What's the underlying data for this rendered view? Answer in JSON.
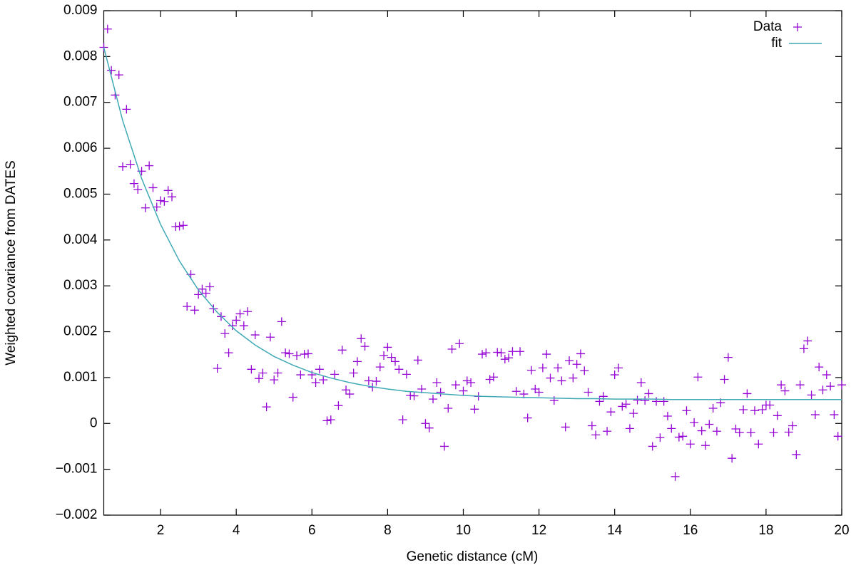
{
  "chart_data": {
    "type": "scatter",
    "xlabel": "Genetic distance (cM)",
    "ylabel": "Weighted covariance from DATES",
    "xlim": [
      0.5,
      20
    ],
    "ylim": [
      -0.002,
      0.009
    ],
    "xticks": [
      2,
      4,
      6,
      8,
      10,
      12,
      14,
      16,
      18,
      20
    ],
    "yticks": [
      {
        "value": -0.002,
        "label": "−0.002"
      },
      {
        "value": -0.001,
        "label": "−0.001"
      },
      0,
      0.001,
      0.002,
      0.003,
      0.004,
      0.005,
      0.006,
      0.007,
      0.008,
      0.009
    ],
    "grid": false,
    "legend": "upper right",
    "series": [
      {
        "name": "Data",
        "color": "#9400d3",
        "kind": "points",
        "x": [
          0.5,
          0.6,
          0.7,
          0.8,
          0.9,
          1,
          1.1,
          1.2,
          1.3,
          1.4,
          1.5,
          1.6,
          1.7,
          1.8,
          1.9,
          2,
          2.1,
          2.2,
          2.3,
          2.4,
          2.5,
          2.6,
          2.7,
          2.8,
          2.9,
          3,
          3.1,
          3.2,
          3.3,
          3.4,
          3.5,
          3.6,
          3.7,
          3.8,
          3.9,
          4,
          4.1,
          4.2,
          4.3,
          4.4,
          4.5,
          4.6,
          4.7,
          4.8,
          4.9,
          5,
          5.1,
          5.2,
          5.3,
          5.4,
          5.5,
          5.6,
          5.7,
          5.8,
          5.9,
          6,
          6.1,
          6.2,
          6.3,
          6.4,
          6.5,
          6.6,
          6.7,
          6.8,
          6.9,
          7,
          7.1,
          7.2,
          7.3,
          7.4,
          7.5,
          7.6,
          7.7,
          7.8,
          7.9,
          8,
          8.1,
          8.2,
          8.3,
          8.4,
          8.5,
          8.6,
          8.7,
          8.8,
          8.9,
          9,
          9.1,
          9.2,
          9.3,
          9.4,
          9.5,
          9.6,
          9.7,
          9.8,
          9.9,
          10,
          10.1,
          10.2,
          10.3,
          10.4,
          10.5,
          10.6,
          10.7,
          10.8,
          10.9,
          11,
          11.1,
          11.2,
          11.3,
          11.4,
          11.5,
          11.6,
          11.7,
          11.8,
          11.9,
          12,
          12.1,
          12.2,
          12.3,
          12.4,
          12.5,
          12.6,
          12.7,
          12.8,
          12.9,
          13,
          13.1,
          13.2,
          13.3,
          13.4,
          13.5,
          13.6,
          13.7,
          13.8,
          13.9,
          14,
          14.1,
          14.2,
          14.3,
          14.4,
          14.5,
          14.6,
          14.7,
          14.8,
          14.9,
          15,
          15.1,
          15.2,
          15.3,
          15.4,
          15.5,
          15.6,
          15.7,
          15.8,
          15.9,
          16,
          16.1,
          16.2,
          16.3,
          16.4,
          16.5,
          16.6,
          16.7,
          16.8,
          16.9,
          17,
          17.1,
          17.2,
          17.3,
          17.4,
          17.5,
          17.6,
          17.7,
          17.8,
          17.9,
          18,
          18.1,
          18.2,
          18.3,
          18.4,
          18.5,
          18.6,
          18.7,
          18.8,
          18.9,
          19,
          19.1,
          19.2,
          19.3,
          19.4,
          19.5,
          19.6,
          19.7,
          19.8,
          19.9,
          20
        ],
        "values": [
          0.0082,
          0.0086,
          0.0077,
          0.00716,
          0.0076,
          0.0056,
          0.00685,
          0.00565,
          0.00523,
          0.0051,
          0.0055,
          0.0047,
          0.00562,
          0.00514,
          0.00472,
          0.00486,
          0.00484,
          0.00508,
          0.00494,
          0.00429,
          0.0043,
          0.00432,
          0.00255,
          0.00325,
          0.00247,
          0.00281,
          0.00293,
          0.00284,
          0.00298,
          0.0025,
          0.0012,
          0.00233,
          0.00196,
          0.00154,
          0.00213,
          0.00225,
          0.00239,
          0.00213,
          0.00244,
          0.00118,
          0.00193,
          0.00098,
          0.0011,
          0.00036,
          0.00188,
          0.00095,
          0.0011,
          0.00222,
          0.00154,
          0.00152,
          0.00057,
          0.00148,
          0.00106,
          0.00151,
          0.00152,
          0.00106,
          0.00089,
          0.00118,
          0.00095,
          6e-05,
          8e-05,
          0.00107,
          0.00039,
          0.0016,
          0.00073,
          0.00064,
          0.0011,
          0.00135,
          0.00185,
          0.00168,
          0.00093,
          0.00079,
          0.00092,
          0.00123,
          0.00148,
          0.00166,
          0.00144,
          0.00135,
          0.00118,
          8e-05,
          0.00107,
          0.00061,
          0.0006,
          0.00138,
          0.00075,
          0,
          -0.0001,
          0.00053,
          0.00089,
          0.00068,
          -0.0005,
          0.00033,
          0.00162,
          0.00084,
          0.00174,
          0.00071,
          0.00093,
          0.00089,
          0.00031,
          0.00059,
          0.00151,
          0.00154,
          0.00096,
          0.00101,
          0.00155,
          0.00154,
          0.0014,
          0.00143,
          0.00157,
          0.0007,
          0.00157,
          0.00064,
          0.00012,
          0.00116,
          0.00075,
          0.00068,
          0.00121,
          0.00151,
          0.00099,
          0.0005,
          0.00121,
          0.00093,
          -8e-05,
          0.00137,
          0.00099,
          0.00129,
          0.00152,
          0.00115,
          0.00068,
          -5e-05,
          -0.00025,
          0.00048,
          0.00059,
          -0.00017,
          0.00025,
          0.00106,
          0.00121,
          0.00037,
          0.00042,
          -0.00011,
          0.00022,
          0.00051,
          0.00089,
          0.0005,
          0.00065,
          -0.0005,
          0.00048,
          -0.00031,
          0.00048,
          0.00016,
          -0.00011,
          -0.00116,
          -0.0003,
          -0.00028,
          0.00028,
          -0.00045,
          2e-05,
          0.00101,
          -0.00016,
          -0.00048,
          -2e-05,
          0.00033,
          -0.00017,
          0.00045,
          0.00096,
          0.00144,
          -0.00076,
          -0.00012,
          -0.0002,
          0.0003,
          0.00065,
          -0.0002,
          0.00028,
          -0.00045,
          0.0003,
          0.0004,
          0.0004,
          -0.0002,
          0.00017,
          0.00084,
          0.00071,
          -0.00019,
          -5e-05,
          -0.00068,
          0.00084,
          0.00163,
          0.0018,
          0.00062,
          0.00019,
          0.00123,
          0.00073,
          0.00106,
          0.00081,
          0.00019,
          -0.00028,
          0.00084
        ]
      },
      {
        "name": "fit",
        "color": "#3fa9b5",
        "kind": "line",
        "x": [
          0.5,
          1,
          1.5,
          2,
          2.5,
          3,
          3.5,
          4,
          4.5,
          5,
          5.5,
          6,
          6.5,
          7,
          7.5,
          8,
          8.5,
          9,
          9.5,
          10,
          10.5,
          11,
          11.5,
          12,
          12.5,
          13,
          13.5,
          14,
          14.5,
          15,
          15.5,
          16,
          16.5,
          17,
          17.5,
          18,
          18.5,
          19,
          19.5,
          20
        ],
        "values": [
          0.0082,
          0.0066,
          0.00534,
          0.00434,
          0.00354,
          0.00291,
          0.00242,
          0.00202,
          0.00171,
          0.00146,
          0.00127,
          0.00111,
          0.00099,
          0.00089,
          0.00081,
          0.00075,
          0.0007,
          0.00067,
          0.00064,
          0.00061,
          0.00059,
          0.00058,
          0.00057,
          0.00056,
          0.00055,
          0.00054,
          0.00054,
          0.00053,
          0.00053,
          0.00053,
          0.00052,
          0.00052,
          0.00052,
          0.00052,
          0.00052,
          0.00052,
          0.00052,
          0.00052,
          0.00052,
          0.00052
        ]
      }
    ]
  }
}
